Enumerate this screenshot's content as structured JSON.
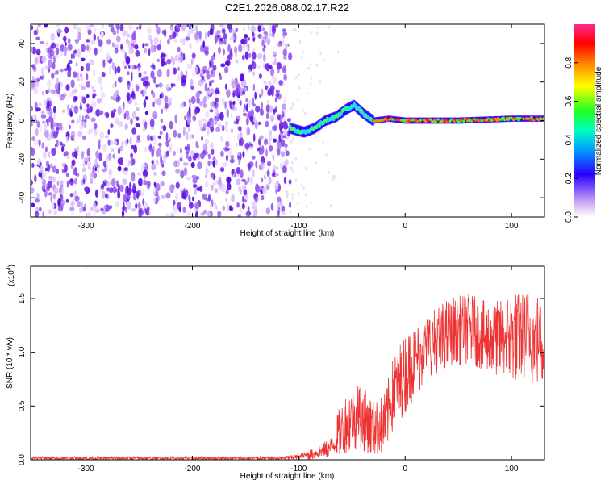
{
  "chart_data": [
    {
      "type": "heatmap",
      "title": "C2E1.2026.088.02.17.R22",
      "xlabel": "Height of straight line (km)",
      "ylabel": "Frequency (Hz)",
      "xlim": [
        -352,
        131
      ],
      "ylim": [
        -50,
        50
      ],
      "xticks": [
        -300,
        -200,
        -100,
        0,
        100
      ],
      "yticks": [
        -40,
        -20,
        0,
        20,
        40
      ],
      "noise_region_x": [
        -352,
        -108
      ],
      "signal_trace": [
        {
          "x": -108,
          "y": -4
        },
        {
          "x": -95,
          "y": -6
        },
        {
          "x": -85,
          "y": -4
        },
        {
          "x": -75,
          "y": 0
        },
        {
          "x": -65,
          "y": 2
        },
        {
          "x": -55,
          "y": 6
        },
        {
          "x": -48,
          "y": 8
        },
        {
          "x": -40,
          "y": 4
        },
        {
          "x": -30,
          "y": 0
        },
        {
          "x": -15,
          "y": 1
        },
        {
          "x": 0,
          "y": 0
        },
        {
          "x": 50,
          "y": 0
        },
        {
          "x": 100,
          "y": 1
        },
        {
          "x": 131,
          "y": 1
        }
      ],
      "colorbar": {
        "label": "Normalized spectral amplitude",
        "range": [
          0.0,
          1.0
        ],
        "ticks": [
          "0.0",
          "0.2",
          "0.4",
          "0.6",
          "0.8"
        ]
      }
    },
    {
      "type": "line",
      "xlabel": "Height of straight line (km)",
      "ylabel": "SNR (10 * v/v)",
      "yscale_label": "(x10",
      "yscale_exp": "4",
      "xlim": [
        -352,
        131
      ],
      "ylim": [
        0,
        1.8
      ],
      "xticks": [
        -300,
        -200,
        -100,
        0,
        100
      ],
      "yticks": [
        "0.0",
        "0.5",
        "1.0",
        "1.5"
      ],
      "envelope": [
        {
          "x": -352,
          "lo": 0.0,
          "hi": 0.03
        },
        {
          "x": -120,
          "lo": 0.0,
          "hi": 0.03
        },
        {
          "x": -100,
          "lo": 0.0,
          "hi": 0.05
        },
        {
          "x": -85,
          "lo": 0.0,
          "hi": 0.12
        },
        {
          "x": -70,
          "lo": 0.02,
          "hi": 0.2
        },
        {
          "x": -60,
          "lo": 0.05,
          "hi": 0.55
        },
        {
          "x": -45,
          "lo": 0.1,
          "hi": 0.75
        },
        {
          "x": -30,
          "lo": 0.05,
          "hi": 0.55
        },
        {
          "x": -20,
          "lo": 0.05,
          "hi": 0.6
        },
        {
          "x": -10,
          "lo": 0.3,
          "hi": 1.0
        },
        {
          "x": 5,
          "lo": 0.5,
          "hi": 1.25
        },
        {
          "x": 20,
          "lo": 0.75,
          "hi": 1.35
        },
        {
          "x": 40,
          "lo": 0.85,
          "hi": 1.5
        },
        {
          "x": 60,
          "lo": 0.9,
          "hi": 1.55
        },
        {
          "x": 80,
          "lo": 0.8,
          "hi": 1.45
        },
        {
          "x": 100,
          "lo": 0.75,
          "hi": 1.55
        },
        {
          "x": 115,
          "lo": 0.7,
          "hi": 1.6
        },
        {
          "x": 131,
          "lo": 0.7,
          "hi": 1.5
        }
      ],
      "color": "#ee3333"
    }
  ]
}
